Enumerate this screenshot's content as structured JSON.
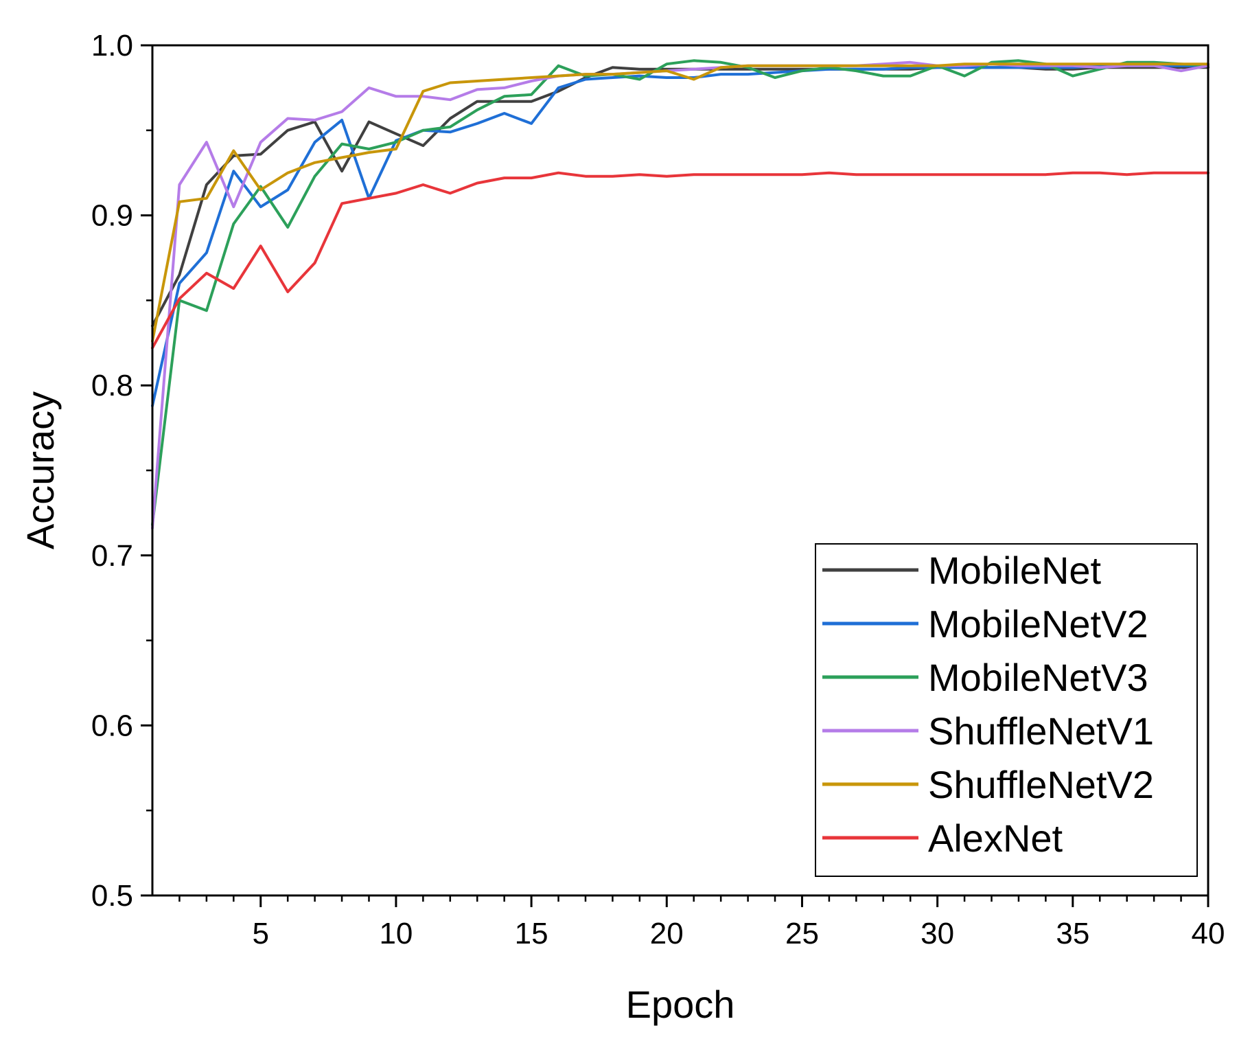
{
  "chart_data": {
    "type": "line",
    "xlabel": "Epoch",
    "ylabel": "Accuracy",
    "xlim": [
      1,
      40
    ],
    "ylim": [
      0.5,
      1.0
    ],
    "x_ticks": [
      5,
      10,
      15,
      20,
      25,
      30,
      35,
      40
    ],
    "y_ticks": [
      0.5,
      0.6,
      0.7,
      0.8,
      0.9,
      1.0
    ],
    "grid": false,
    "legend_position": "bottom-right",
    "x": [
      1,
      2,
      3,
      4,
      5,
      6,
      7,
      8,
      9,
      10,
      11,
      12,
      13,
      14,
      15,
      16,
      17,
      18,
      19,
      20,
      21,
      22,
      23,
      24,
      25,
      26,
      27,
      28,
      29,
      30,
      31,
      32,
      33,
      34,
      35,
      36,
      37,
      38,
      39,
      40
    ],
    "series": [
      {
        "name": "MobileNet",
        "color": "#404040",
        "values": [
          0.835,
          0.865,
          0.918,
          0.935,
          0.936,
          0.95,
          0.955,
          0.926,
          0.955,
          0.948,
          0.941,
          0.957,
          0.967,
          0.967,
          0.967,
          0.973,
          0.981,
          0.987,
          0.986,
          0.986,
          0.986,
          0.986,
          0.986,
          0.986,
          0.986,
          0.986,
          0.986,
          0.986,
          0.986,
          0.987,
          0.987,
          0.987,
          0.987,
          0.986,
          0.986,
          0.987,
          0.987,
          0.987,
          0.987,
          0.987
        ]
      },
      {
        "name": "MobileNetV2",
        "color": "#1f6fd6",
        "values": [
          0.788,
          0.86,
          0.878,
          0.926,
          0.905,
          0.915,
          0.943,
          0.956,
          0.91,
          0.944,
          0.95,
          0.949,
          0.954,
          0.96,
          0.954,
          0.975,
          0.98,
          0.981,
          0.982,
          0.981,
          0.981,
          0.983,
          0.983,
          0.984,
          0.985,
          0.986,
          0.986,
          0.986,
          0.987,
          0.987,
          0.987,
          0.987,
          0.987,
          0.987,
          0.987,
          0.988,
          0.988,
          0.988,
          0.988,
          0.988
        ]
      },
      {
        "name": "MobileNetV3",
        "color": "#2ca05a",
        "values": [
          0.718,
          0.85,
          0.844,
          0.895,
          0.917,
          0.893,
          0.923,
          0.942,
          0.939,
          0.943,
          0.95,
          0.952,
          0.962,
          0.97,
          0.971,
          0.988,
          0.982,
          0.983,
          0.98,
          0.989,
          0.991,
          0.99,
          0.987,
          0.981,
          0.985,
          0.987,
          0.985,
          0.982,
          0.982,
          0.988,
          0.982,
          0.99,
          0.991,
          0.989,
          0.982,
          0.986,
          0.99,
          0.99,
          0.989,
          0.988
        ]
      },
      {
        "name": "ShuffleNetV1",
        "color": "#b57ce8",
        "values": [
          0.716,
          0.918,
          0.943,
          0.905,
          0.943,
          0.957,
          0.956,
          0.961,
          0.975,
          0.97,
          0.97,
          0.968,
          0.974,
          0.975,
          0.979,
          0.982,
          0.983,
          0.983,
          0.984,
          0.985,
          0.986,
          0.987,
          0.988,
          0.988,
          0.988,
          0.988,
          0.988,
          0.989,
          0.99,
          0.988,
          0.988,
          0.989,
          0.988,
          0.988,
          0.988,
          0.987,
          0.988,
          0.988,
          0.985,
          0.988
        ]
      },
      {
        "name": "ShuffleNetV2",
        "color": "#c8960a",
        "values": [
          0.826,
          0.908,
          0.91,
          0.938,
          0.915,
          0.925,
          0.931,
          0.934,
          0.937,
          0.939,
          0.973,
          0.978,
          0.979,
          0.98,
          0.981,
          0.982,
          0.983,
          0.983,
          0.984,
          0.985,
          0.98,
          0.987,
          0.988,
          0.988,
          0.988,
          0.988,
          0.988,
          0.988,
          0.988,
          0.988,
          0.989,
          0.989,
          0.989,
          0.989,
          0.989,
          0.989,
          0.989,
          0.989,
          0.989,
          0.989
        ]
      },
      {
        "name": "AlexNet",
        "color": "#e8353a",
        "values": [
          0.822,
          0.851,
          0.866,
          0.857,
          0.882,
          0.855,
          0.872,
          0.907,
          0.91,
          0.913,
          0.918,
          0.913,
          0.919,
          0.922,
          0.922,
          0.925,
          0.923,
          0.923,
          0.924,
          0.923,
          0.924,
          0.924,
          0.924,
          0.924,
          0.924,
          0.925,
          0.924,
          0.924,
          0.924,
          0.924,
          0.924,
          0.924,
          0.924,
          0.924,
          0.925,
          0.925,
          0.924,
          0.925,
          0.925,
          0.925
        ]
      }
    ]
  }
}
